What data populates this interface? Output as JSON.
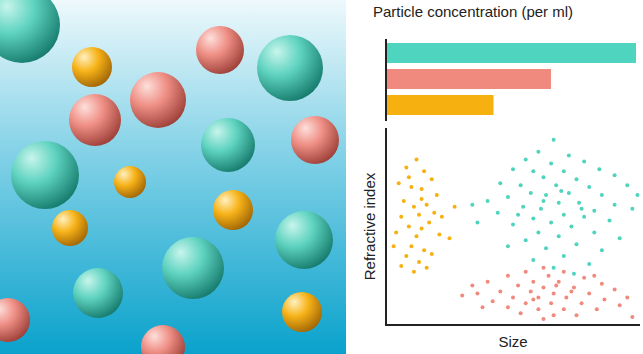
{
  "chart_data": [
    {
      "type": "bar",
      "title": "Particle concentration (per ml)",
      "orientation": "horizontal",
      "categories": [
        null,
        null,
        null
      ],
      "values": [
        100,
        66,
        43
      ],
      "colors": [
        "#4fd4bf",
        "#f08a7e",
        "#f6b010"
      ],
      "xlim": [
        0,
        100
      ],
      "tick_labels": false,
      "grid": false
    },
    {
      "type": "scatter",
      "x_label": "Size",
      "y_label": "Refractive index",
      "xlim": [
        0,
        100
      ],
      "ylim": [
        0,
        100
      ],
      "tick_labels": false,
      "grid": false,
      "marker": "circle",
      "series": [
        {
          "color": "#f6b010",
          "x": [
            8,
            12,
            15,
            5,
            10,
            14,
            18,
            20,
            7,
            11,
            16,
            13,
            6,
            19,
            9,
            14,
            17,
            12,
            4,
            21,
            10,
            15,
            8,
            13,
            18,
            11,
            3,
            22,
            27,
            25,
            16,
            6,
            14,
            9
          ],
          "values": [
            80,
            84,
            78,
            72,
            70,
            69,
            74,
            66,
            63,
            60,
            61,
            56,
            55,
            57,
            50,
            49,
            52,
            45,
            47,
            46,
            40,
            38,
            35,
            32,
            36,
            27,
            40,
            55,
            60,
            44,
            29,
            30,
            64,
            75
          ]
        },
        {
          "color": "#4fd4bf",
          "x": [
            66,
            60,
            72,
            55,
            65,
            78,
            50,
            58,
            70,
            84,
            62,
            75,
            90,
            45,
            53,
            67,
            80,
            95,
            57,
            63,
            72,
            85,
            48,
            40,
            68,
            76,
            90,
            54,
            61,
            82,
            97,
            44,
            70,
            78,
            58,
            65,
            88,
            50,
            73,
            36,
            60,
            82,
            68,
            55,
            92,
            75,
            63,
            48,
            85,
            70,
            58,
            80,
            66,
            74,
            99,
            34,
            62,
            69,
            77,
            52
          ],
          "values": [
            94,
            88,
            86,
            84,
            82,
            83,
            79,
            78,
            78,
            79,
            75,
            74,
            76,
            72,
            71,
            71,
            70,
            71,
            67,
            66,
            67,
            66,
            65,
            63,
            62,
            62,
            61,
            60,
            59,
            58,
            59,
            57,
            56,
            55,
            54,
            52,
            53,
            51,
            50,
            52,
            47,
            47,
            45,
            43,
            44,
            41,
            39,
            40,
            38,
            35,
            33,
            31,
            29,
            26,
            66,
            61,
            63,
            68,
            59,
            56
          ]
        },
        {
          "color": "#f08a7e",
          "x": [
            62,
            55,
            70,
            48,
            64,
            78,
            40,
            58,
            68,
            85,
            34,
            52,
            62,
            74,
            90,
            45,
            57,
            66,
            80,
            30,
            50,
            60,
            71,
            86,
            95,
            42,
            55,
            65,
            77,
            48,
            60,
            70,
            83,
            53,
            66,
            75,
            38,
            92,
            58,
            73,
            97,
            36,
            67,
            82,
            62
          ],
          "values": [
            29,
            27,
            27,
            25,
            25,
            24,
            22,
            22,
            22,
            21,
            20,
            20,
            19,
            19,
            18,
            17,
            17,
            16,
            16,
            15,
            14,
            14,
            14,
            13,
            14,
            12,
            11,
            11,
            11,
            9,
            8,
            8,
            8,
            6,
            5,
            5,
            9,
            10,
            13,
            17,
            4,
            16,
            20,
            25,
            3
          ]
        }
      ]
    }
  ]
}
